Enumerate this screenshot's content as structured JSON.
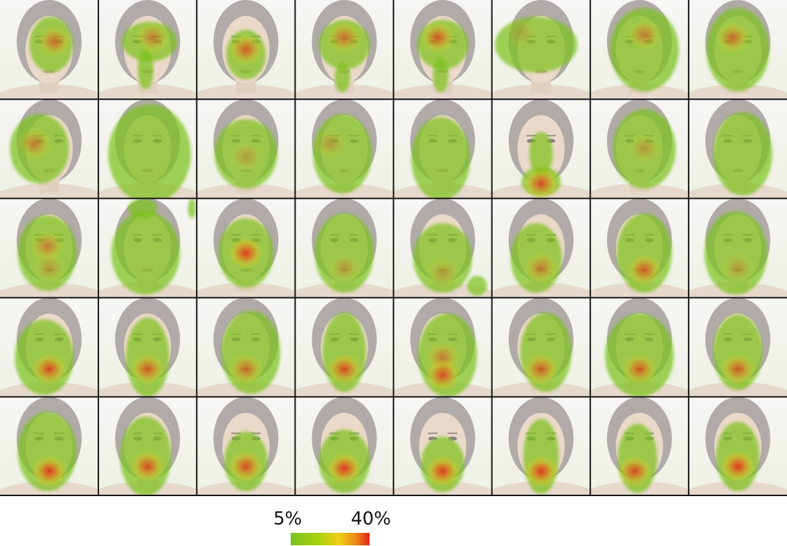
{
  "grid": {
    "rows": 5,
    "columns": 8,
    "cells": [
      [
        {
          "fix": [
            [
              0.55,
              0.42,
              0.6
            ]
          ],
          "blob": [
            [
              0.52,
              0.45,
              0.22,
              0.28
            ]
          ]
        },
        {
          "fix": [
            [
              0.55,
              0.38,
              0.5
            ]
          ],
          "blob": [
            [
              0.52,
              0.42,
              0.28,
              0.2
            ],
            [
              0.48,
              0.7,
              0.08,
              0.2
            ]
          ]
        },
        {
          "fix": [
            [
              0.5,
              0.5,
              0.7
            ]
          ],
          "blob": [
            [
              0.5,
              0.55,
              0.2,
              0.25
            ]
          ]
        },
        {
          "fix": [
            [
              0.5,
              0.38,
              0.6
            ]
          ],
          "blob": [
            [
              0.5,
              0.45,
              0.26,
              0.25
            ],
            [
              0.48,
              0.78,
              0.08,
              0.15
            ]
          ]
        },
        {
          "fix": [
            [
              0.45,
              0.38,
              0.7
            ]
          ],
          "blob": [
            [
              0.5,
              0.45,
              0.26,
              0.25
            ],
            [
              0.48,
              0.75,
              0.08,
              0.18
            ]
          ]
        },
        {
          "fix": [
            [
              0.3,
              0.33,
              0.2
            ]
          ],
          "blob": [
            [
              0.45,
              0.45,
              0.42,
              0.28
            ]
          ]
        },
        {
          "fix": [
            [
              0.55,
              0.35,
              0.5
            ]
          ],
          "blob": [
            [
              0.55,
              0.5,
              0.35,
              0.42
            ]
          ]
        },
        {
          "fix": [
            [
              0.45,
              0.38,
              0.6
            ]
          ],
          "blob": [
            [
              0.5,
              0.5,
              0.32,
              0.42
            ]
          ]
        }
      ],
      [
        {
          "fix": [
            [
              0.35,
              0.45,
              0.5
            ]
          ],
          "blob": [
            [
              0.4,
              0.5,
              0.3,
              0.35
            ]
          ]
        },
        {
          "fix": [],
          "blob": [
            [
              0.52,
              0.55,
              0.42,
              0.5
            ]
          ]
        },
        {
          "fix": [
            [
              0.5,
              0.58,
              0.3
            ]
          ],
          "blob": [
            [
              0.5,
              0.55,
              0.32,
              0.35
            ]
          ]
        },
        {
          "fix": [
            [
              0.35,
              0.45,
              0.3
            ]
          ],
          "blob": [
            [
              0.48,
              0.55,
              0.3,
              0.4
            ]
          ]
        },
        {
          "fix": [],
          "blob": [
            [
              0.48,
              0.6,
              0.3,
              0.42
            ]
          ]
        },
        {
          "fix": [
            [
              0.5,
              0.85,
              0.8
            ]
          ],
          "blob": [
            [
              0.5,
              0.55,
              0.12,
              0.22
            ],
            [
              0.5,
              0.83,
              0.2,
              0.15
            ]
          ]
        },
        {
          "fix": [
            [
              0.55,
              0.5,
              0.3
            ]
          ],
          "blob": [
            [
              0.55,
              0.5,
              0.32,
              0.4
            ]
          ]
        },
        {
          "fix": [],
          "blob": [
            [
              0.55,
              0.55,
              0.3,
              0.42
            ]
          ]
        }
      ],
      [
        {
          "fix": [
            [
              0.48,
              0.48,
              0.5
            ],
            [
              0.5,
              0.7,
              0.3
            ]
          ],
          "blob": [
            [
              0.48,
              0.55,
              0.3,
              0.38
            ]
          ]
        },
        {
          "fix": [],
          "blob": [
            [
              0.48,
              0.55,
              0.35,
              0.42
            ],
            [
              0.45,
              0.1,
              0.15,
              0.1
            ],
            [
              0.95,
              0.1,
              0.04,
              0.1
            ]
          ]
        },
        {
          "fix": [
            [
              0.5,
              0.55,
              0.9
            ]
          ],
          "blob": [
            [
              0.5,
              0.55,
              0.28,
              0.35
            ]
          ]
        },
        {
          "fix": [
            [
              0.5,
              0.7,
              0.3
            ]
          ],
          "blob": [
            [
              0.5,
              0.55,
              0.3,
              0.4
            ]
          ]
        },
        {
          "fix": [
            [
              0.5,
              0.75,
              0.3
            ]
          ],
          "blob": [
            [
              0.5,
              0.6,
              0.3,
              0.35
            ],
            [
              0.85,
              0.88,
              0.1,
              0.1
            ]
          ]
        },
        {
          "fix": [
            [
              0.5,
              0.7,
              0.5
            ]
          ],
          "blob": [
            [
              0.45,
              0.6,
              0.26,
              0.35
            ]
          ]
        },
        {
          "fix": [
            [
              0.55,
              0.72,
              0.7
            ]
          ],
          "blob": [
            [
              0.55,
              0.55,
              0.28,
              0.4
            ]
          ]
        },
        {
          "fix": [
            [
              0.5,
              0.7,
              0.3
            ]
          ],
          "blob": [
            [
              0.48,
              0.55,
              0.32,
              0.42
            ]
          ]
        }
      ],
      [
        {
          "fix": [
            [
              0.5,
              0.72,
              0.8
            ]
          ],
          "blob": [
            [
              0.45,
              0.6,
              0.3,
              0.38
            ]
          ]
        },
        {
          "fix": [
            [
              0.5,
              0.72,
              0.7
            ]
          ],
          "blob": [
            [
              0.5,
              0.6,
              0.22,
              0.4
            ]
          ]
        },
        {
          "fix": [
            [
              0.5,
              0.72,
              0.6
            ]
          ],
          "blob": [
            [
              0.55,
              0.55,
              0.3,
              0.42
            ]
          ]
        },
        {
          "fix": [
            [
              0.5,
              0.72,
              0.8
            ]
          ],
          "blob": [
            [
              0.5,
              0.55,
              0.22,
              0.4
            ]
          ]
        },
        {
          "fix": [
            [
              0.5,
              0.6,
              0.5
            ],
            [
              0.5,
              0.78,
              0.8
            ]
          ],
          "blob": [
            [
              0.55,
              0.58,
              0.3,
              0.42
            ]
          ]
        },
        {
          "fix": [
            [
              0.5,
              0.72,
              0.7
            ]
          ],
          "blob": [
            [
              0.55,
              0.55,
              0.26,
              0.4
            ]
          ]
        },
        {
          "fix": [
            [
              0.5,
              0.72,
              0.7
            ]
          ],
          "blob": [
            [
              0.5,
              0.58,
              0.35,
              0.42
            ]
          ]
        },
        {
          "fix": [
            [
              0.5,
              0.72,
              0.7
            ]
          ],
          "blob": [
            [
              0.5,
              0.55,
              0.25,
              0.38
            ]
          ]
        }
      ],
      [
        {
          "fix": [
            [
              0.5,
              0.75,
              0.9
            ]
          ],
          "blob": [
            [
              0.48,
              0.55,
              0.3,
              0.4
            ]
          ]
        },
        {
          "fix": [
            [
              0.5,
              0.7,
              0.8
            ]
          ],
          "blob": [
            [
              0.48,
              0.6,
              0.26,
              0.4
            ]
          ]
        },
        {
          "fix": [
            [
              0.5,
              0.7,
              0.8
            ]
          ],
          "blob": [
            [
              0.5,
              0.65,
              0.22,
              0.3
            ]
          ]
        },
        {
          "fix": [
            [
              0.5,
              0.72,
              0.9
            ]
          ],
          "blob": [
            [
              0.5,
              0.65,
              0.26,
              0.32
            ]
          ]
        },
        {
          "fix": [
            [
              0.5,
              0.75,
              0.9
            ]
          ],
          "blob": [
            [
              0.5,
              0.68,
              0.22,
              0.28
            ]
          ]
        },
        {
          "fix": [
            [
              0.5,
              0.75,
              0.9
            ]
          ],
          "blob": [
            [
              0.5,
              0.6,
              0.18,
              0.38
            ]
          ]
        },
        {
          "fix": [
            [
              0.45,
              0.75,
              0.8
            ]
          ],
          "blob": [
            [
              0.48,
              0.62,
              0.2,
              0.35
            ]
          ]
        },
        {
          "fix": [
            [
              0.5,
              0.7,
              0.9
            ]
          ],
          "blob": [
            [
              0.5,
              0.6,
              0.22,
              0.35
            ]
          ]
        }
      ]
    ]
  },
  "legend": {
    "low": "5%",
    "high": "40%",
    "colors": [
      "#79c21e",
      "#a8d20e",
      "#f2cc16",
      "#ee8a16",
      "#e12418"
    ]
  }
}
